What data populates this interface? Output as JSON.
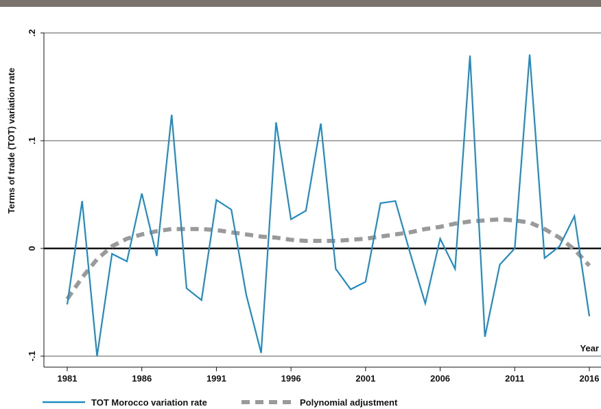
{
  "colors": {
    "top_band": "#7a726c",
    "series_main": "#1f8bc2",
    "series_fit": "#9a9a9a",
    "gridline": "#555555",
    "zero_line": "#111111"
  },
  "chart_data": {
    "type": "line",
    "xlabel": "Year",
    "ylabel": "Terms of trade (TOT) variation rate",
    "xlim": [
      1980,
      2017
    ],
    "ylim": [
      -0.105,
      0.2
    ],
    "xticks": [
      1981,
      1986,
      1991,
      1996,
      2001,
      2006,
      2011,
      2016
    ],
    "xtick_labels": [
      "1981",
      "1986",
      "1991",
      "1996",
      "2001",
      "2006",
      "2011",
      "2016"
    ],
    "yticks": [
      -0.1,
      0,
      0.1,
      0.2
    ],
    "ytick_labels": [
      "-.1",
      "0",
      ".1",
      ".2"
    ],
    "grid": "horizontal",
    "legend_position": "bottom",
    "x": [
      1981,
      1982,
      1983,
      1984,
      1985,
      1986,
      1987,
      1988,
      1989,
      1990,
      1991,
      1992,
      1993,
      1994,
      1995,
      1996,
      1997,
      1998,
      1999,
      2000,
      2001,
      2002,
      2003,
      2004,
      2005,
      2006,
      2007,
      2008,
      2009,
      2010,
      2011,
      2012,
      2013,
      2014,
      2015,
      2016
    ],
    "series": [
      {
        "name": "TOT Morocco variation rate",
        "style": "solid",
        "values": [
          -0.052,
          0.044,
          -0.1,
          -0.005,
          -0.012,
          0.051,
          -0.007,
          0.124,
          -0.037,
          -0.048,
          0.045,
          0.036,
          -0.043,
          -0.097,
          0.117,
          0.027,
          0.035,
          0.116,
          -0.019,
          -0.038,
          -0.031,
          0.042,
          0.044,
          -0.005,
          -0.051,
          0.009,
          -0.019,
          0.179,
          -0.082,
          -0.015,
          0.0,
          0.18,
          -0.009,
          0.002,
          0.03,
          -0.063
        ]
      },
      {
        "name": "Polynomial adjustment",
        "style": "dashed",
        "values": [
          -0.047,
          -0.027,
          -0.01,
          0.002,
          0.009,
          0.013,
          0.016,
          0.018,
          0.018,
          0.018,
          0.017,
          0.015,
          0.013,
          0.011,
          0.01,
          0.008,
          0.007,
          0.007,
          0.007,
          0.008,
          0.009,
          0.011,
          0.013,
          0.015,
          0.018,
          0.02,
          0.023,
          0.025,
          0.026,
          0.027,
          0.026,
          0.024,
          0.018,
          0.01,
          -0.001,
          -0.016
        ]
      }
    ]
  },
  "legend": [
    {
      "label": "TOT Morocco variation rate",
      "style": "solid"
    },
    {
      "label": "Polynomial adjustment",
      "style": "dashed"
    }
  ]
}
